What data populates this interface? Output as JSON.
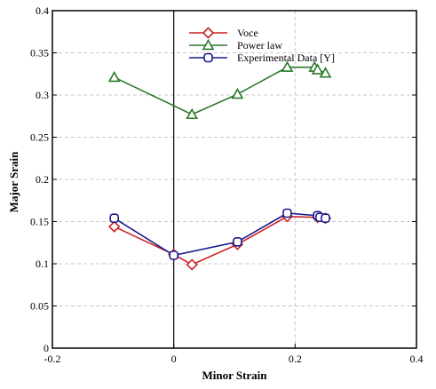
{
  "chart_data": {
    "type": "line",
    "title": "",
    "xlabel": "Minor Strain",
    "ylabel": "Major Srain",
    "xlim": [
      -0.2,
      0.4
    ],
    "ylim": [
      0,
      0.4
    ],
    "x_ticks": [
      -0.2,
      0,
      0.2,
      0.4
    ],
    "x_tick_labels": [
      "-0.2",
      "0",
      "0.2",
      "0.4"
    ],
    "y_ticks": [
      0,
      0.05,
      0.1,
      0.15,
      0.2,
      0.25,
      0.3,
      0.35,
      0.4
    ],
    "y_tick_labels": [
      "0",
      "0.05",
      "0.1",
      "0.15",
      "0.2",
      "0.25",
      "0.3",
      "0.35",
      "0.4"
    ],
    "grid": true,
    "legend_position": "top-center",
    "series": [
      {
        "name": "Voce",
        "color": "#cc2222",
        "marker": "diamond",
        "x": [
          -0.098,
          0.0,
          0.03,
          0.105,
          0.187,
          0.237,
          0.25
        ],
        "y": [
          0.144,
          0.111,
          0.099,
          0.123,
          0.156,
          0.155,
          0.154
        ]
      },
      {
        "name": "Power law",
        "color": "#2a7a2a",
        "marker": "triangle",
        "x": [
          -0.098,
          0.03,
          0.105,
          0.187,
          0.232,
          0.237,
          0.25
        ],
        "y": [
          0.321,
          0.277,
          0.301,
          0.333,
          0.333,
          0.33,
          0.326
        ]
      },
      {
        "name": "Experimental Data [Y]",
        "color": "#1a1a8c",
        "marker": "square",
        "x": [
          -0.098,
          0.0,
          0.105,
          0.187,
          0.237,
          0.241,
          0.25
        ],
        "y": [
          0.154,
          0.11,
          0.126,
          0.16,
          0.157,
          0.155,
          0.154
        ]
      }
    ]
  }
}
